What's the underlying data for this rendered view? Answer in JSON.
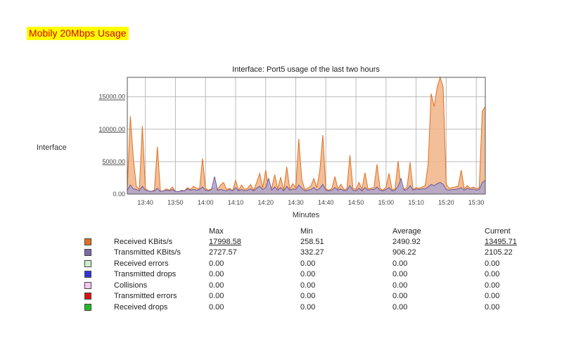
{
  "heading": "Mobily 20Mbps Usage",
  "side_label": "Interface",
  "chart_data": {
    "type": "area",
    "title": "Interface: Port5 usage of the last two hours",
    "xlabel": "Minutes",
    "ylabel": "",
    "ylim": [
      0,
      18000
    ],
    "yticks": [
      0,
      5000,
      10000,
      15000
    ],
    "ytick_labels": [
      "0.00",
      "5000.00",
      "10000.00",
      "15000.00"
    ],
    "xticks": [
      "13:40",
      "13:50",
      "14:00",
      "14:10",
      "14:20",
      "14:30",
      "14:40",
      "14:50",
      "15:00",
      "15:10",
      "15:20",
      "15:30"
    ],
    "x_minutes": [
      -6,
      -5,
      -4,
      -3,
      -2,
      -1,
      0,
      1,
      2,
      3,
      4,
      5,
      6,
      7,
      8,
      9,
      10,
      11,
      12,
      13,
      14,
      15,
      16,
      17,
      18,
      19,
      20,
      21,
      22,
      23,
      24,
      25,
      26,
      27,
      28,
      29,
      30,
      31,
      32,
      33,
      34,
      35,
      36,
      37,
      38,
      39,
      40,
      41,
      42,
      43,
      44,
      45,
      46,
      47,
      48,
      49,
      50,
      51,
      52,
      53,
      54,
      55,
      56,
      57,
      58,
      59,
      60,
      61,
      62,
      63,
      64,
      65,
      66,
      67,
      68,
      69,
      70,
      71,
      72,
      73,
      74,
      75,
      76,
      77,
      78,
      79,
      80,
      81,
      82,
      83,
      84,
      85,
      86,
      87,
      88,
      89,
      90,
      91,
      92,
      93,
      94,
      95,
      96,
      97,
      98,
      99,
      100,
      101,
      102,
      103,
      104,
      105,
      106,
      107,
      108,
      109,
      110,
      111,
      112,
      113
    ],
    "series": [
      {
        "name": "Received KBits/s",
        "color": "#e07020",
        "fill": "#f0b486",
        "values": [
          1000,
          12000,
          5500,
          1200,
          700,
          10500,
          900,
          500,
          400,
          600,
          7300,
          400,
          500,
          800,
          600,
          1100,
          400,
          300,
          600,
          500,
          1000,
          700,
          1200,
          900,
          800,
          5500,
          900,
          600,
          800,
          1000,
          700,
          1400,
          1800,
          700,
          900,
          500,
          2100,
          600,
          1400,
          700,
          900,
          1500,
          600,
          1800,
          3200,
          1000,
          3700,
          700,
          900,
          3000,
          800,
          2600,
          600,
          4200,
          800,
          1600,
          1000,
          8500,
          2200,
          700,
          900,
          1200,
          2400,
          1000,
          3600,
          9100,
          800,
          600,
          900,
          2700,
          800,
          1500,
          700,
          800,
          6000,
          900,
          700,
          1800,
          700,
          3300,
          800,
          900,
          1000,
          4600,
          900,
          600,
          1100,
          3200,
          700,
          800,
          5100,
          900,
          700,
          1100,
          4900,
          700,
          1000,
          900,
          1100,
          1300,
          4600,
          15500,
          13500,
          16500,
          17998,
          16500,
          1500,
          900,
          1000,
          1100,
          1200,
          3700,
          800,
          1300,
          900,
          1100,
          800,
          1000,
          12800,
          13495
        ]
      },
      {
        "name": "Transmitted KBits/s",
        "color": "#6a5a9a",
        "fill": "#b0a4cc",
        "values": [
          600,
          1400,
          800,
          700,
          500,
          1200,
          600,
          500,
          400,
          500,
          900,
          400,
          500,
          600,
          500,
          700,
          400,
          400,
          500,
          500,
          800,
          600,
          700,
          600,
          700,
          1100,
          600,
          500,
          700,
          2700,
          600,
          700,
          600,
          500,
          700,
          500,
          1000,
          500,
          700,
          500,
          600,
          800,
          500,
          900,
          1200,
          700,
          1000,
          2400,
          600,
          1100,
          600,
          1000,
          500,
          1200,
          600,
          800,
          700,
          1400,
          900,
          500,
          600,
          700,
          1000,
          600,
          900,
          1500,
          600,
          500,
          600,
          1000,
          600,
          800,
          500,
          600,
          1300,
          600,
          500,
          900,
          500,
          1000,
          600,
          700,
          700,
          1100,
          600,
          500,
          700,
          1000,
          500,
          600,
          1200,
          2400,
          600,
          700,
          1300,
          600,
          800,
          700,
          800,
          800,
          1100,
          1500,
          1300,
          1600,
          1800,
          1500,
          700,
          600,
          700,
          700,
          800,
          1000,
          600,
          900,
          700,
          800,
          600,
          700,
          1800,
          2105
        ]
      }
    ],
    "grid": true
  },
  "stats": {
    "headers": [
      "Max",
      "Min",
      "Average",
      "Current"
    ],
    "rows": [
      {
        "label": "Received KBits/s",
        "color": "#e07020",
        "max": "17998.58",
        "min": "258.51",
        "avg": "2490.92",
        "cur": "13495.71",
        "ul": true
      },
      {
        "label": "Transmitted KBits/s",
        "color": "#7a6aa8",
        "max": "2727.57",
        "min": "332.27",
        "avg": "906.22",
        "cur": "2105.22",
        "ul": false
      },
      {
        "label": "Received errors",
        "color": "#ccf0cc",
        "max": "0.00",
        "min": "0.00",
        "avg": "0.00",
        "cur": "0.00",
        "ul": false
      },
      {
        "label": "Transmitted drops",
        "color": "#3333dd",
        "max": "0.00",
        "min": "0.00",
        "avg": "0.00",
        "cur": "0.00",
        "ul": false
      },
      {
        "label": "Collisions",
        "color": "#f4c8f4",
        "max": "0.00",
        "min": "0.00",
        "avg": "0.00",
        "cur": "0.00",
        "ul": false
      },
      {
        "label": "Transmitted errors",
        "color": "#dd1111",
        "max": "0.00",
        "min": "0.00",
        "avg": "0.00",
        "cur": "0.00",
        "ul": false
      },
      {
        "label": "Received drops",
        "color": "#22bb22",
        "max": "0.00",
        "min": "0.00",
        "avg": "0.00",
        "cur": "0.00",
        "ul": false
      }
    ]
  }
}
